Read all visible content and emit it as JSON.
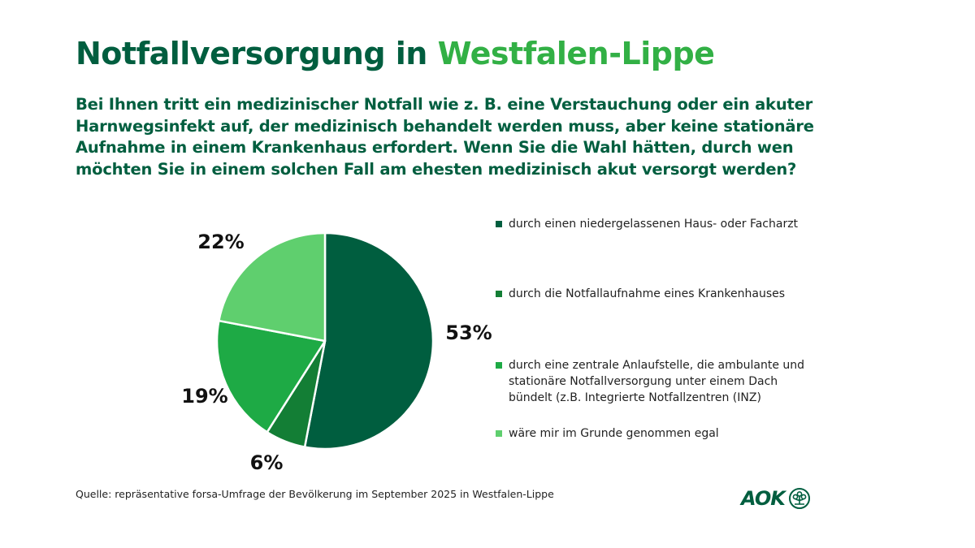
{
  "title": {
    "part1": "Notfallversorgung in ",
    "part2": "Westfalen-Lippe"
  },
  "question": "Bei Ihnen tritt ein medizinischer Notfall wie z. B. eine Verstauchung oder ein akuter Harnwegsinfekt auf, der medizinisch behandelt werden muss, aber keine stationäre Aufnahme in einem Krankenhaus erfordert. Wenn Sie die Wahl hätten, durch wen möchten Sie in einem solchen Fall am ehesten medizinisch akut versorgt werden?",
  "source": "Quelle: repräsentative forsa-Umfrage der Bevölkerung im September 2025 in Westfalen-Lippe",
  "logo": {
    "text": "AOK",
    "icon": "aok-tree-icon"
  },
  "colors": {
    "title_dark": "#005e3f",
    "title_accent": "#32b045"
  },
  "chart_data": {
    "type": "pie",
    "title": "Notfallversorgung in Westfalen-Lippe",
    "unit": "%",
    "start_angle_deg": 0,
    "direction": "clockwise",
    "legend_position": "right",
    "slices": [
      {
        "label": "durch einen niedergelassenen Haus- oder Facharzt",
        "value": 53,
        "display": "53%",
        "color": "#005e3f"
      },
      {
        "label": "durch die Notfallaufnahme eines Krankenhauses",
        "value": 6,
        "display": "6%",
        "color": "#137e35"
      },
      {
        "label": "durch eine zentrale Anlaufstelle, die ambulante und stationäre Notfallversorgung unter einem Dach bündelt (z.B. Integrierte Notfallzentren (INZ)",
        "value": 19,
        "display": "19%",
        "color": "#1eaa45"
      },
      {
        "label": "wäre mir im Grunde genommen egal",
        "value": 22,
        "display": "22%",
        "color": "#5fcf6e"
      }
    ]
  }
}
